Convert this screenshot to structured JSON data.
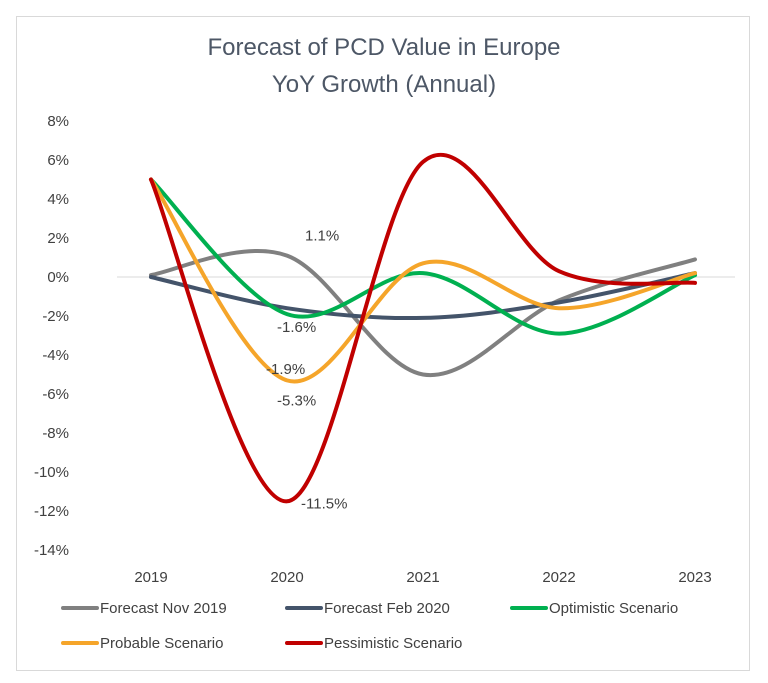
{
  "chart_data": {
    "type": "line",
    "title": "Forecast of PCD Value in Europe",
    "subtitle": "YoY Growth (Annual)",
    "x": [
      "2019",
      "2020",
      "2021",
      "2022",
      "2023"
    ],
    "y_ticks": [
      "8%",
      "6%",
      "4%",
      "2%",
      "0%",
      "-2%",
      "-4%",
      "-6%",
      "-8%",
      "-10%",
      "-12%",
      "-14%"
    ],
    "ylim": [
      -14,
      8
    ],
    "y_unit": "%",
    "grid": "zero line only",
    "legend_position": "bottom",
    "smooth": true,
    "series": [
      {
        "name": "Forecast Nov 2019",
        "color": "#808080",
        "values": [
          0.1,
          1.1,
          -5.0,
          -1.2,
          0.9
        ]
      },
      {
        "name": "Forecast Feb 2020",
        "color": "#44546a",
        "values": [
          0.0,
          -1.6,
          -2.1,
          -1.3,
          0.2
        ]
      },
      {
        "name": "Optimistic Scenario",
        "color": "#00b050",
        "values": [
          5.0,
          -1.9,
          0.2,
          -2.9,
          0.1
        ]
      },
      {
        "name": "Probable Scenario",
        "color": "#f5a52a",
        "values": [
          5.0,
          -5.3,
          0.7,
          -1.6,
          0.2
        ]
      },
      {
        "name": "Pessimistic Scenario",
        "color": "#c00000",
        "values": [
          5.0,
          -11.5,
          5.9,
          0.3,
          -0.3
        ]
      }
    ],
    "data_labels": [
      {
        "text": "1.1%",
        "x": "2020",
        "y": 1.1
      },
      {
        "text": "-1.6%",
        "x": "2020",
        "y": -1.6
      },
      {
        "text": "-1.9%",
        "x": "2020",
        "y": -1.9
      },
      {
        "text": "-5.3%",
        "x": "2020",
        "y": -5.3
      },
      {
        "text": "-11.5%",
        "x": "2020",
        "y": -11.5
      }
    ]
  }
}
